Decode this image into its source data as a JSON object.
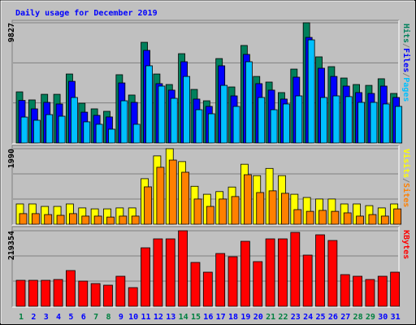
{
  "chart_data": {
    "type": "bar",
    "title": "Daily usage for December 2019",
    "categories": [
      "1",
      "2",
      "3",
      "4",
      "5",
      "6",
      "7",
      "8",
      "9",
      "10",
      "11",
      "12",
      "13",
      "14",
      "15",
      "16",
      "17",
      "18",
      "19",
      "20",
      "21",
      "22",
      "23",
      "24",
      "25",
      "26",
      "27",
      "28",
      "29",
      "30",
      "31"
    ],
    "weekend_indices": [
      0,
      6,
      7,
      13,
      14,
      20,
      21,
      27,
      28
    ],
    "weekend_color": "#008040",
    "weekday_color": "#0000ff",
    "legend_separator": "/",
    "panels": [
      {
        "ylim": [
          0,
          9827
        ],
        "yticks": [
          9827
        ],
        "grid_divisions": 3,
        "series": [
          {
            "name": "Hits",
            "color": "#00805c",
            "values": [
              4180,
              3520,
              3980,
              3980,
              5640,
              3250,
              2790,
              2590,
              5580,
              3920,
              8230,
              5640,
              4780,
              7300,
              4380,
              3450,
              6900,
              4580,
              7970,
              5440,
              4980,
              4120,
              6040,
              9827,
              7040,
              6240,
              5310,
              4780,
              4710,
              5250,
              4050
            ]
          },
          {
            "name": "Files",
            "color": "#0000ff",
            "values": [
              3480,
              2790,
              3320,
              3190,
              5040,
              2520,
              2260,
              2130,
              4910,
              3320,
              7570,
              4850,
              4320,
              6640,
              3590,
              2990,
              6310,
              3850,
              7240,
              4850,
              4320,
              3590,
              5380,
              8630,
              6110,
              5440,
              4650,
              4120,
              4050,
              4650,
              3720
            ]
          },
          {
            "name": "Pages",
            "color": "#00c0ff",
            "values": [
              2120,
              1860,
              2320,
              2190,
              3720,
              1730,
              1530,
              1130,
              3450,
              1530,
              6310,
              4650,
              3650,
              5440,
              2720,
              2390,
              4710,
              2990,
              6640,
              3720,
              2720,
              3190,
              3850,
              8430,
              3720,
              3850,
              3790,
              3320,
              3320,
              3190,
              2990
            ]
          }
        ]
      },
      {
        "ylim": [
          0,
          1990
        ],
        "yticks": [
          1990
        ],
        "grid_divisions": 3,
        "series": [
          {
            "name": "Visits",
            "color": "#ffff00",
            "values": [
              535,
              535,
              470,
              470,
              535,
              430,
              405,
              405,
              430,
              430,
              1200,
              1800,
              1990,
              1650,
              1000,
              790,
              860,
              980,
              1580,
              1280,
              1470,
              1280,
              790,
              705,
              665,
              665,
              535,
              535,
              490,
              430,
              535
            ]
          },
          {
            "name": "Sites",
            "color": "#ff8000",
            "values": [
              280,
              280,
              255,
              235,
              280,
              215,
              215,
              190,
              215,
              215,
              985,
              1500,
              1690,
              1370,
              665,
              470,
              665,
              730,
              1305,
              835,
              880,
              815,
              385,
              340,
              365,
              340,
              300,
              215,
              255,
              215,
              405
            ]
          }
        ]
      },
      {
        "ylim": [
          0,
          219354
        ],
        "yticks": [
          219354
        ],
        "grid_divisions": 3,
        "series": [
          {
            "name": "KBytes",
            "color": "#ff0000",
            "values": [
              75490,
              75490,
              75490,
              77850,
              103800,
              73130,
              66050,
              61330,
              87280,
              54260,
              169850,
              195800,
              195800,
              219354,
              127390,
              99080,
              153340,
              143900,
              188720,
              129750,
              195800,
              195800,
              214670,
              148620,
              207590,
              191080,
              92000,
              87280,
              77850,
              87280,
              99080
            ]
          }
        ]
      }
    ]
  }
}
